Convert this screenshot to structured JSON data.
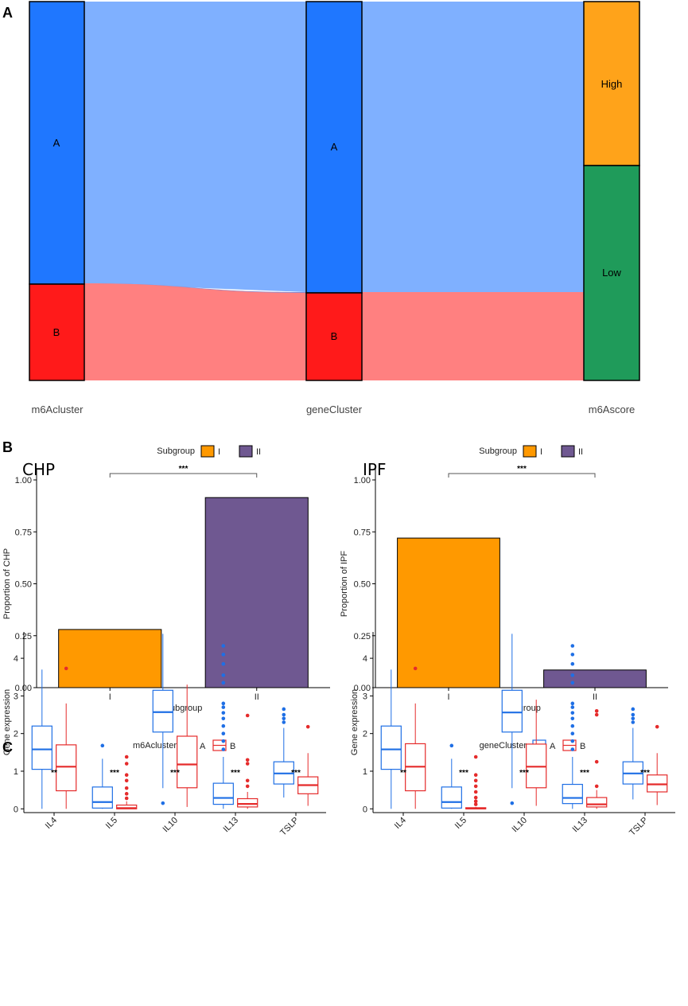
{
  "panels": {
    "a": "A",
    "b": "B",
    "c": "C"
  },
  "sankey": {
    "axes": [
      "m6Acluster",
      "geneCluster",
      "m6Ascore"
    ],
    "nodes": {
      "m6Acluster": [
        {
          "label": "A",
          "value": 0.686,
          "color": "#1F77FF"
        },
        {
          "label": "B",
          "value": 0.256,
          "color": "#FF1A1A"
        }
      ],
      "geneCluster": [
        {
          "label": "A",
          "value": 0.708,
          "color": "#1F77FF"
        },
        {
          "label": "B",
          "value": 0.234,
          "color": "#FF1A1A"
        }
      ],
      "m6Ascore": [
        {
          "label": "High",
          "value": 0.404,
          "color": "#FFA31A"
        },
        {
          "label": "Low",
          "value": 0.536,
          "color": "#1F9B5A"
        }
      ]
    },
    "flow_colors": {
      "A": "#7FB0FF",
      "B": "#FF8080"
    }
  },
  "chart_data": [
    {
      "type": "bar",
      "title": "CHP",
      "categories": [
        "I",
        "II"
      ],
      "values": [
        0.28,
        0.915
      ],
      "colors": [
        "#FF9900",
        "#6F5891"
      ],
      "xlabel": "Subgroup",
      "ylabel": "Proportion of CHP",
      "ylim": [
        0,
        1.0
      ],
      "yticks": [
        "0.00",
        "0.25",
        "0.50",
        "0.75",
        "1.00"
      ],
      "legend_title": "Subgroup",
      "legend": [
        "I",
        "II"
      ],
      "significance": "***"
    },
    {
      "type": "bar",
      "title": "IPF",
      "categories": [
        "I",
        "II"
      ],
      "values": [
        0.72,
        0.085
      ],
      "colors": [
        "#FF9900",
        "#6F5891"
      ],
      "xlabel": "Subgroup",
      "ylabel": "Proportion of IPF",
      "ylim": [
        0,
        1.0
      ],
      "yticks": [
        "0.00",
        "0.25",
        "0.50",
        "0.75",
        "1.00"
      ],
      "legend_title": "Subgroup",
      "legend": [
        "I",
        "II"
      ],
      "significance": "***"
    },
    {
      "type": "boxplot",
      "legend_title": "m6Acluster",
      "legend": [
        "A",
        "B"
      ],
      "colors": [
        "#1F6FE5",
        "#E52B2B"
      ],
      "categories": [
        "IL4",
        "IL5",
        "IL10",
        "IL13",
        "TSLP"
      ],
      "ylabel": "Gene expression",
      "ylim": [
        -0.1,
        4.7
      ],
      "yticks": [
        "0",
        "1",
        "2",
        "3",
        "4"
      ],
      "significance": [
        "**",
        "***",
        "***",
        "***",
        "***"
      ],
      "groups": [
        {
          "A": {
            "q1": 1.05,
            "med": 1.58,
            "q3": 2.2,
            "lo": 0.0,
            "hi": 3.7,
            "out": []
          },
          "B": {
            "q1": 0.48,
            "med": 1.12,
            "q3": 1.7,
            "lo": 0.0,
            "hi": 2.8,
            "out": [
              3.73
            ]
          }
        },
        {
          "A": {
            "q1": 0.02,
            "med": 0.18,
            "q3": 0.58,
            "lo": 0.0,
            "hi": 1.33,
            "out": [
              1.68
            ]
          },
          "B": {
            "q1": 0.0,
            "med": 0.02,
            "q3": 0.1,
            "lo": 0.0,
            "hi": 0.2,
            "out": [
              0.28,
              0.4,
              0.55,
              0.75,
              0.9,
              1.2,
              1.38
            ]
          }
        },
        {
          "A": {
            "q1": 2.04,
            "med": 2.57,
            "q3": 3.15,
            "lo": 0.55,
            "hi": 4.65,
            "out": [
              0.15
            ]
          },
          "B": {
            "q1": 0.56,
            "med": 1.18,
            "q3": 1.93,
            "lo": 0.05,
            "hi": 3.3,
            "out": []
          }
        },
        {
          "A": {
            "q1": 0.12,
            "med": 0.29,
            "q3": 0.68,
            "lo": 0.0,
            "hi": 1.38,
            "out": [
              1.58,
              1.8,
              2.0,
              2.2,
              2.4,
              2.55,
              2.7,
              2.8,
              3.35,
              3.55,
              3.85,
              4.1,
              4.33
            ]
          },
          "B": {
            "q1": 0.05,
            "med": 0.13,
            "q3": 0.27,
            "lo": 0.0,
            "hi": 0.45,
            "out": [
              0.6,
              0.75,
              1.2,
              1.3,
              2.48
            ]
          }
        },
        {
          "A": {
            "q1": 0.66,
            "med": 0.94,
            "q3": 1.25,
            "lo": 0.3,
            "hi": 2.15,
            "out": [
              2.3,
              2.4,
              2.5,
              2.65
            ]
          },
          "B": {
            "q1": 0.4,
            "med": 0.63,
            "q3": 0.85,
            "lo": 0.08,
            "hi": 1.48,
            "out": [
              2.18
            ]
          }
        }
      ]
    },
    {
      "type": "boxplot",
      "legend_title": "geneCluster",
      "legend": [
        "A",
        "B"
      ],
      "colors": [
        "#1F6FE5",
        "#E52B2B"
      ],
      "categories": [
        "IL4",
        "IL5",
        "IL10",
        "IL13",
        "TSLP"
      ],
      "ylabel": "Gene expression",
      "ylim": [
        -0.1,
        4.7
      ],
      "yticks": [
        "0",
        "1",
        "2",
        "3",
        "4"
      ],
      "significance": [
        "**",
        "***",
        "***",
        "***",
        "***"
      ],
      "groups": [
        {
          "A": {
            "q1": 1.05,
            "med": 1.58,
            "q3": 2.2,
            "lo": 0.0,
            "hi": 3.7,
            "out": []
          },
          "B": {
            "q1": 0.48,
            "med": 1.12,
            "q3": 1.73,
            "lo": 0.0,
            "hi": 2.8,
            "out": [
              3.73
            ]
          }
        },
        {
          "A": {
            "q1": 0.02,
            "med": 0.18,
            "q3": 0.58,
            "lo": 0.0,
            "hi": 1.33,
            "out": [
              1.68
            ]
          },
          "B": {
            "q1": 0.0,
            "med": 0.01,
            "q3": 0.03,
            "lo": 0.0,
            "hi": 0.05,
            "out": [
              0.12,
              0.2,
              0.3,
              0.45,
              0.6,
              0.75,
              0.9,
              1.38
            ]
          }
        },
        {
          "A": {
            "q1": 2.04,
            "med": 2.56,
            "q3": 3.15,
            "lo": 0.55,
            "hi": 4.65,
            "out": [
              0.15
            ]
          },
          "B": {
            "q1": 0.56,
            "med": 1.12,
            "q3": 1.72,
            "lo": 0.08,
            "hi": 2.9,
            "out": []
          }
        },
        {
          "A": {
            "q1": 0.14,
            "med": 0.29,
            "q3": 0.65,
            "lo": 0.0,
            "hi": 1.38,
            "out": [
              1.58,
              1.8,
              2.0,
              2.2,
              2.4,
              2.55,
              2.7,
              2.8,
              3.35,
              3.55,
              3.85,
              4.1,
              4.33
            ]
          },
          "B": {
            "q1": 0.05,
            "med": 0.12,
            "q3": 0.3,
            "lo": 0.0,
            "hi": 0.5,
            "out": [
              0.6,
              1.25,
              2.5,
              2.6
            ]
          }
        },
        {
          "A": {
            "q1": 0.66,
            "med": 0.94,
            "q3": 1.25,
            "lo": 0.25,
            "hi": 2.15,
            "out": [
              2.3,
              2.4,
              2.5,
              2.65
            ]
          },
          "B": {
            "q1": 0.45,
            "med": 0.65,
            "q3": 0.9,
            "lo": 0.1,
            "hi": 1.48,
            "out": [
              2.18
            ]
          }
        }
      ]
    }
  ]
}
